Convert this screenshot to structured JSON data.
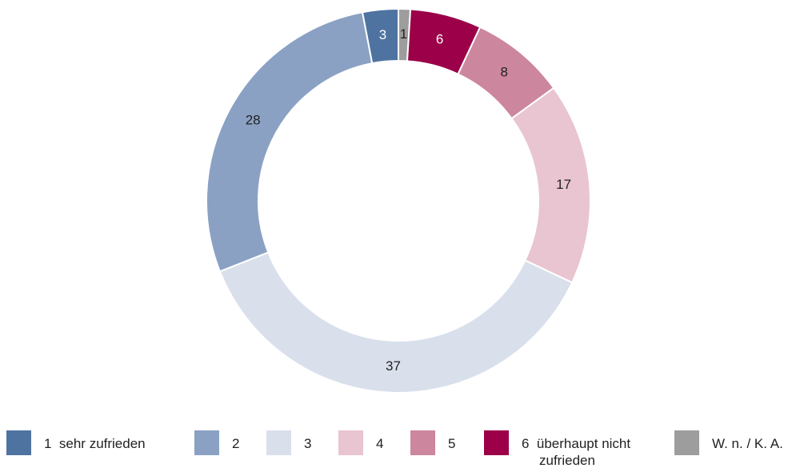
{
  "chart_data": {
    "type": "donut",
    "categories": [
      "1  sehr zufrieden",
      "2",
      "3",
      "4",
      "5",
      "6  überhaupt nicht zufrieden",
      "W. n. / K. A."
    ],
    "values": [
      3,
      28,
      37,
      17,
      8,
      6,
      1
    ],
    "colors": [
      "#4e73a0",
      "#8aa1c4",
      "#d9e0ec",
      "#e8c5d0",
      "#cc869d",
      "#9b0048",
      "#9d9d9d"
    ],
    "legend": "bottom"
  }
}
